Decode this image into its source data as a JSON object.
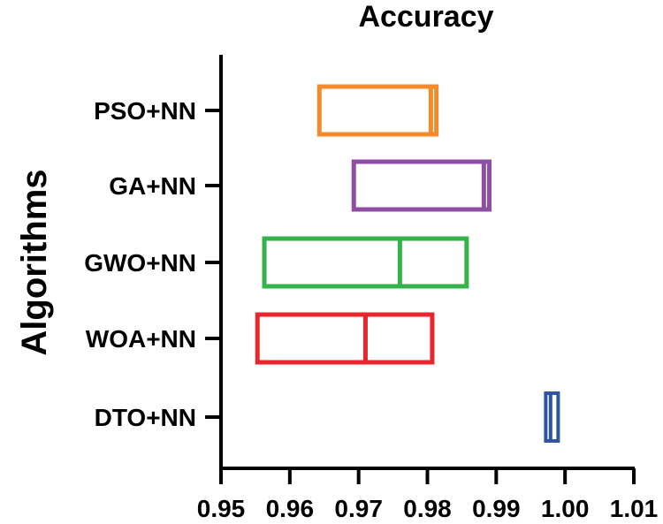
{
  "chart_data": {
    "type": "box",
    "title": "Accuracy",
    "xlabel": "",
    "ylabel": "Algorithms",
    "xlim": [
      0.95,
      1.01
    ],
    "xticks": [
      "0.95",
      "0.96",
      "0.97",
      "0.98",
      "0.99",
      "1.00",
      "1.01"
    ],
    "categories": [
      "PSO+NN",
      "GA+NN",
      "GWO+NN",
      "WOA+NN",
      "DTO+NN"
    ],
    "series": [
      {
        "category": "PSO+NN",
        "q1": 0.9643,
        "median": 0.9805,
        "q3": 0.9813,
        "color": "#F58A2A"
      },
      {
        "category": "GA+NN",
        "q1": 0.9693,
        "median": 0.9882,
        "q3": 0.989,
        "color": "#8E4EA3"
      },
      {
        "category": "GWO+NN",
        "q1": 0.9563,
        "median": 0.976,
        "q3": 0.9857,
        "color": "#33B34A"
      },
      {
        "category": "WOA+NN",
        "q1": 0.9553,
        "median": 0.971,
        "q3": 0.9807,
        "color": "#E8262B"
      },
      {
        "category": "DTO+NN",
        "q1": 0.9972,
        "median": 0.9979,
        "q3": 0.999,
        "color": "#2E55A4"
      }
    ],
    "grid": false,
    "legend": "none"
  }
}
